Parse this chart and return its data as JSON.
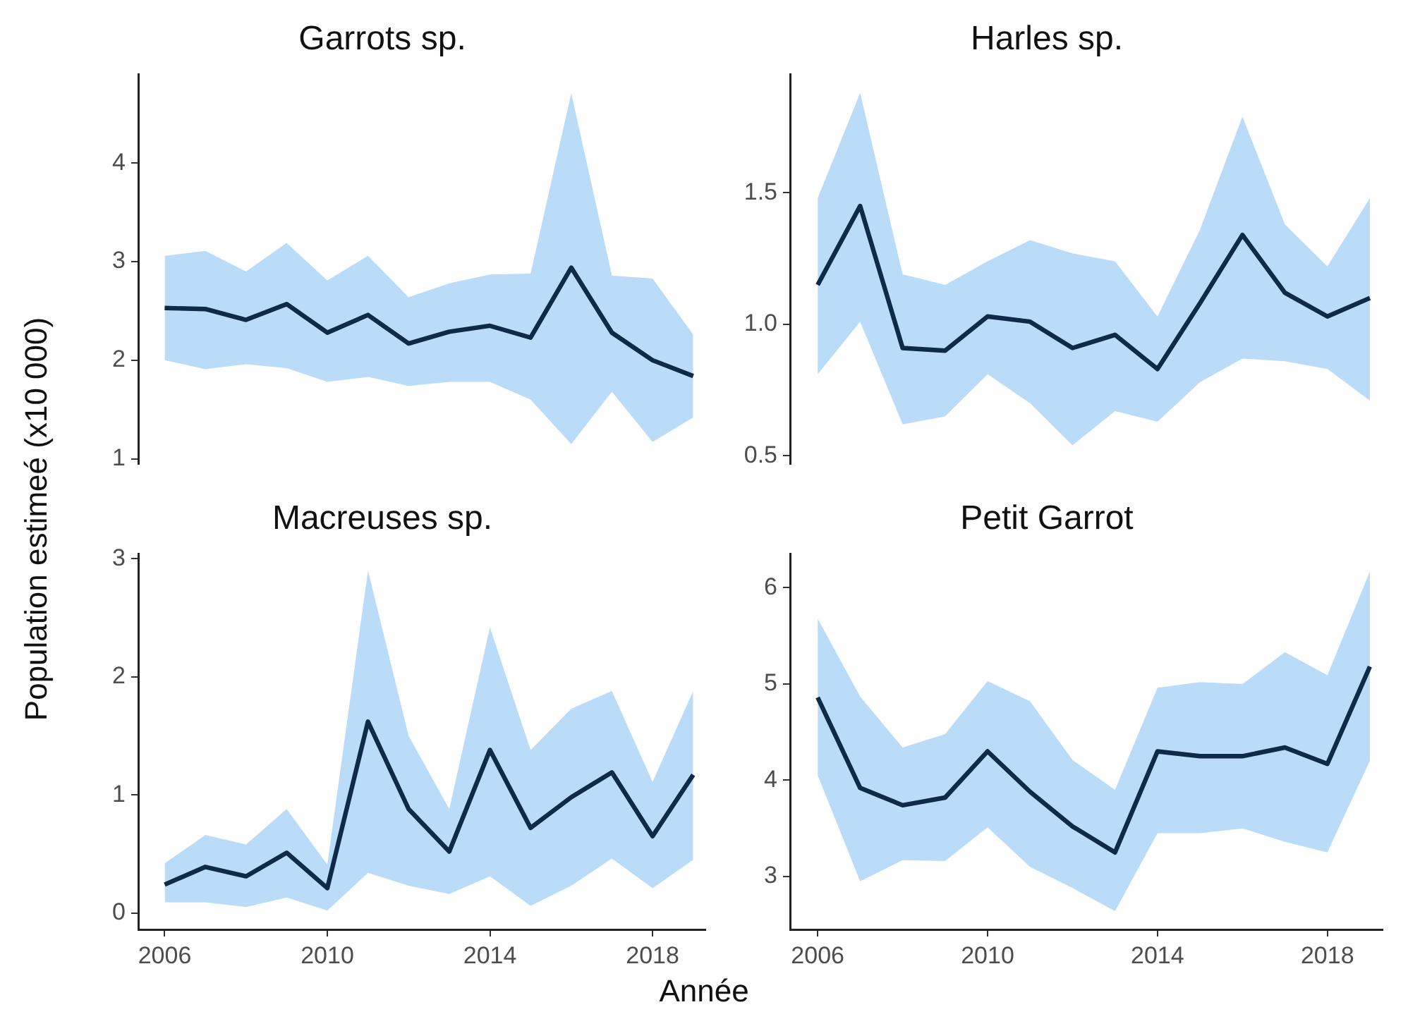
{
  "chart_data": [
    {
      "type": "line",
      "title": "Garrots sp.",
      "ylabel": "Population estimeé (x10 000)",
      "x": [
        2006,
        2007,
        2008,
        2009,
        2010,
        2011,
        2012,
        2013,
        2014,
        2015,
        2016,
        2017,
        2018,
        2019
      ],
      "ylim": [
        0.95,
        4.9
      ],
      "yticks": [
        1,
        2,
        3,
        4
      ],
      "tick_labels": "y",
      "grid": false,
      "legend": false,
      "series": [
        {
          "color": "#0d2a48",
          "values": [
            2.53,
            2.52,
            2.41,
            2.57,
            2.28,
            2.46,
            2.17,
            2.29,
            2.35,
            2.23,
            2.94,
            2.28,
            2.0,
            1.84
          ],
          "lower": [
            2.0,
            1.91,
            1.96,
            1.92,
            1.78,
            1.83,
            1.74,
            1.78,
            1.78,
            1.6,
            1.15,
            1.68,
            1.17,
            1.42
          ],
          "upper": [
            3.06,
            3.11,
            2.9,
            3.19,
            2.81,
            3.06,
            2.64,
            2.78,
            2.87,
            2.88,
            4.71,
            2.86,
            2.83,
            2.26
          ]
        }
      ]
    },
    {
      "type": "line",
      "title": "Harles sp.",
      "x": [
        2006,
        2007,
        2008,
        2009,
        2010,
        2011,
        2012,
        2013,
        2014,
        2015,
        2016,
        2017,
        2018,
        2019
      ],
      "ylim": [
        0.47,
        1.95
      ],
      "yticks": [
        0.5,
        {
          "value": 1,
          "label": "1.0"
        },
        1.5
      ],
      "tick_labels": "y",
      "grid": false,
      "legend": false,
      "series": [
        {
          "color": "#0d2a48",
          "values": [
            1.15,
            1.45,
            0.91,
            0.9,
            1.03,
            1.01,
            0.91,
            0.96,
            0.83,
            1.08,
            1.34,
            1.12,
            1.03,
            1.1
          ],
          "lower": [
            0.81,
            1.01,
            0.62,
            0.65,
            0.81,
            0.7,
            0.54,
            0.67,
            0.63,
            0.78,
            0.87,
            0.86,
            0.83,
            0.71
          ],
          "upper": [
            1.48,
            1.88,
            1.19,
            1.15,
            1.24,
            1.32,
            1.27,
            1.24,
            1.03,
            1.36,
            1.79,
            1.38,
            1.22,
            1.48
          ]
        }
      ]
    },
    {
      "type": "line",
      "title": "Macreuses sp.",
      "xlabel": "Année",
      "x": [
        2006,
        2007,
        2008,
        2009,
        2010,
        2011,
        2012,
        2013,
        2014,
        2015,
        2016,
        2017,
        2018,
        2019
      ],
      "xlim": [
        2005.35,
        2019.3
      ],
      "xticks": [
        2006,
        2010,
        2014,
        2018
      ],
      "ylim": [
        -0.14,
        3.04
      ],
      "yticks": [
        0,
        1,
        2,
        3
      ],
      "grid": false,
      "legend": false,
      "series": [
        {
          "color": "#0d2a48",
          "values": [
            0.24,
            0.39,
            0.31,
            0.51,
            0.21,
            1.62,
            0.88,
            0.52,
            1.38,
            0.72,
            0.98,
            1.19,
            0.65,
            1.17
          ],
          "lower": [
            0.09,
            0.09,
            0.05,
            0.13,
            0.02,
            0.34,
            0.23,
            0.16,
            0.31,
            0.06,
            0.23,
            0.46,
            0.21,
            0.45
          ],
          "upper": [
            0.42,
            0.66,
            0.58,
            0.88,
            0.41,
            2.9,
            1.5,
            0.88,
            2.42,
            1.38,
            1.73,
            1.88,
            1.11,
            1.88
          ]
        }
      ]
    },
    {
      "type": "line",
      "title": "Petit Garrot",
      "x": [
        2006,
        2007,
        2008,
        2009,
        2010,
        2011,
        2012,
        2013,
        2014,
        2015,
        2016,
        2017,
        2018,
        2019
      ],
      "xlim": [
        2005.35,
        2019.3
      ],
      "xticks": [
        2006,
        2010,
        2014,
        2018
      ],
      "ylim": [
        2.45,
        6.35
      ],
      "yticks": [
        3,
        4,
        5,
        6
      ],
      "grid": false,
      "legend": false,
      "series": [
        {
          "color": "#0d2a48",
          "values": [
            4.86,
            3.92,
            3.74,
            3.82,
            4.3,
            3.88,
            3.52,
            3.25,
            4.3,
            4.25,
            4.25,
            4.34,
            4.17,
            5.18
          ],
          "lower": [
            4.05,
            2.95,
            3.17,
            3.16,
            3.51,
            3.1,
            2.88,
            2.64,
            3.45,
            3.45,
            3.5,
            3.36,
            3.25,
            4.2
          ],
          "upper": [
            5.68,
            4.87,
            4.34,
            4.48,
            5.03,
            4.82,
            4.21,
            3.9,
            4.96,
            5.02,
            5.0,
            5.33,
            5.09,
            6.17
          ]
        }
      ]
    }
  ]
}
